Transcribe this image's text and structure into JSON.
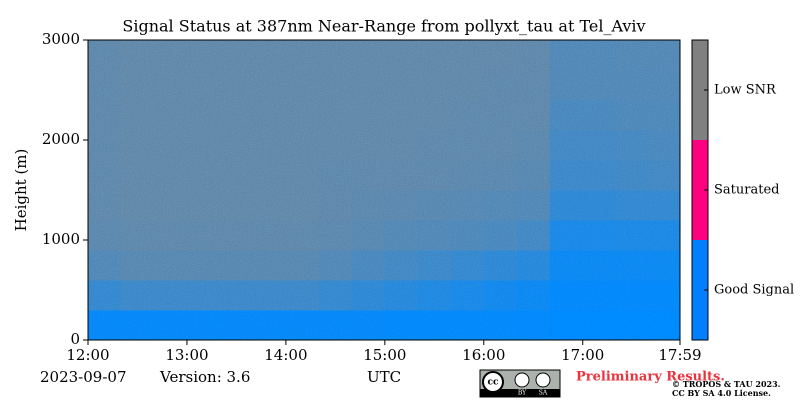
{
  "chart_data": {
    "type": "heatmap",
    "title": "Signal Status at 387nm Near-Range from pollyxt_tau at Tel_Aviv",
    "ylabel": "Height (m)",
    "xlabel": "UTC",
    "x_edges": [
      12,
      12.333,
      12.667,
      13,
      13.333,
      13.667,
      14,
      14.333,
      14.667,
      15,
      15.333,
      15.667,
      16,
      16.333,
      16.667,
      17,
      17.333,
      17.667,
      17.983
    ],
    "y_edges": [
      0,
      300,
      600,
      900,
      1200,
      1500,
      1800,
      2100,
      2400,
      2700,
      3000
    ],
    "values": [
      [
        0.95,
        0.95,
        0.95,
        0.95,
        0.95,
        0.95,
        0.95,
        0.95,
        0.95,
        0.97,
        0.97,
        0.97,
        0.97,
        0.98,
        1,
        1,
        1,
        1
      ],
      [
        0.6,
        0.55,
        0.55,
        0.55,
        0.55,
        0.55,
        0.55,
        0.6,
        0.65,
        0.7,
        0.75,
        0.8,
        0.85,
        0.9,
        0.97,
        0.97,
        0.97,
        0.97
      ],
      [
        0.4,
        0.35,
        0.35,
        0.35,
        0.35,
        0.35,
        0.35,
        0.4,
        0.45,
        0.5,
        0.55,
        0.6,
        0.65,
        0.7,
        0.9,
        0.9,
        0.9,
        0.9
      ],
      [
        0.32,
        0.3,
        0.3,
        0.3,
        0.3,
        0.3,
        0.3,
        0.32,
        0.35,
        0.38,
        0.4,
        0.42,
        0.45,
        0.5,
        0.8,
        0.8,
        0.78,
        0.78
      ],
      [
        0.3,
        0.28,
        0.28,
        0.28,
        0.28,
        0.28,
        0.28,
        0.3,
        0.32,
        0.33,
        0.35,
        0.36,
        0.38,
        0.4,
        0.65,
        0.65,
        0.62,
        0.62
      ],
      [
        0.3,
        0.28,
        0.28,
        0.28,
        0.28,
        0.28,
        0.28,
        0.3,
        0.3,
        0.3,
        0.3,
        0.32,
        0.33,
        0.35,
        0.55,
        0.55,
        0.52,
        0.5
      ],
      [
        0.3,
        0.28,
        0.28,
        0.28,
        0.28,
        0.28,
        0.28,
        0.28,
        0.28,
        0.28,
        0.3,
        0.3,
        0.3,
        0.32,
        0.5,
        0.5,
        0.48,
        0.45
      ],
      [
        0.3,
        0.28,
        0.28,
        0.28,
        0.28,
        0.28,
        0.28,
        0.28,
        0.28,
        0.28,
        0.28,
        0.3,
        0.3,
        0.3,
        0.45,
        0.45,
        0.42,
        0.42
      ],
      [
        0.3,
        0.28,
        0.28,
        0.28,
        0.28,
        0.28,
        0.28,
        0.28,
        0.28,
        0.28,
        0.28,
        0.28,
        0.3,
        0.3,
        0.4,
        0.4,
        0.4,
        0.4
      ],
      [
        0.3,
        0.28,
        0.28,
        0.28,
        0.28,
        0.28,
        0.28,
        0.28,
        0.28,
        0.28,
        0.28,
        0.28,
        0.28,
        0.3,
        0.4,
        0.4,
        0.38,
        0.38
      ]
    ],
    "xlim": [
      12,
      17.983
    ],
    "xticks": [
      {
        "value": 12,
        "label": "12:00"
      },
      {
        "value": 13,
        "label": "13:00"
      },
      {
        "value": 14,
        "label": "14:00"
      },
      {
        "value": 15,
        "label": "15:00"
      },
      {
        "value": 16,
        "label": "16:00"
      },
      {
        "value": 17,
        "label": "17:00"
      },
      {
        "value": 17.983,
        "label": "17:59"
      }
    ],
    "ylim": [
      0,
      3000
    ],
    "yticks": [
      0,
      1000,
      2000,
      3000
    ],
    "colorbar": [
      {
        "name": "Good Signal",
        "color": "#0080ff"
      },
      {
        "name": "Saturated",
        "color": "#ff0080"
      },
      {
        "name": "Low SNR",
        "color": "#808080"
      }
    ],
    "date": "2023-09-07",
    "version": "Version: 3.6",
    "notice": "Preliminary Results.",
    "copyright": [
      "© TROPOS & TAU 2023.",
      "CC BY SA 4.0 License."
    ]
  }
}
